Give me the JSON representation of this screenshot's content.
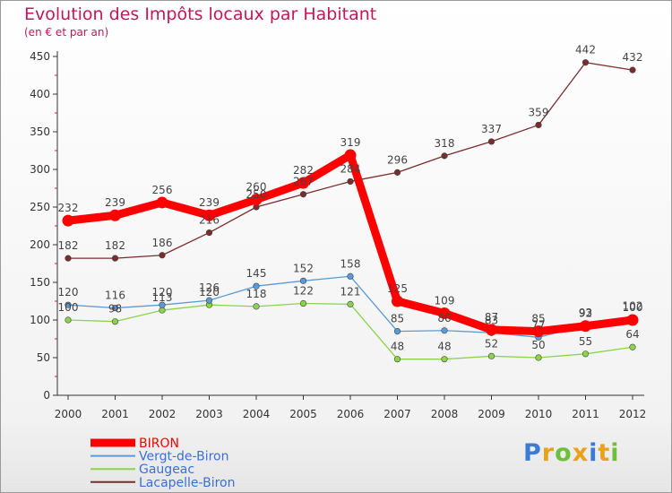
{
  "chart_data": {
    "type": "line",
    "title": "Evolution des Impôts locaux par Habitant",
    "subtitle": "(en € et par an)",
    "xlabel": "",
    "ylabel": "",
    "ylim": [
      0,
      450
    ],
    "yticks": [
      "0",
      "50",
      "100",
      "150",
      "200",
      "250",
      "300",
      "350",
      "400",
      "450"
    ],
    "categories": [
      "2000",
      "2001",
      "2002",
      "2003",
      "2004",
      "2005",
      "2006",
      "2007",
      "2008",
      "2009",
      "2010",
      "2011",
      "2012"
    ],
    "series": [
      {
        "name": "BIRON",
        "color": "#ff0000",
        "values": [
          232,
          239,
          256,
          239,
          260,
          282,
          319,
          125,
          109,
          87,
          85,
          92,
          100
        ]
      },
      {
        "name": "Vergt-de-Biron",
        "color": "#5b9bd5",
        "values": [
          120,
          116,
          120,
          126,
          145,
          152,
          158,
          85,
          86,
          83,
          77,
          93,
          102
        ]
      },
      {
        "name": "Gaugeac",
        "color": "#8bd44a",
        "values": [
          100,
          98,
          113,
          120,
          118,
          122,
          121,
          48,
          48,
          52,
          50,
          55,
          64
        ]
      },
      {
        "name": "Lacapelle-Biron",
        "color": "#7b2c2c",
        "values": [
          182,
          182,
          186,
          216,
          250,
          267,
          284,
          296,
          318,
          337,
          359,
          442,
          432
        ]
      }
    ],
    "legend_position": "bottom-left",
    "grid": false
  },
  "logo": {
    "text": "Proxiti",
    "colors": [
      "#3a7bd5",
      "#e8a21c",
      "#6dbf3c",
      "#e8a21c",
      "#3a7bd5",
      "#e8a21c",
      "#6dbf3c"
    ]
  }
}
